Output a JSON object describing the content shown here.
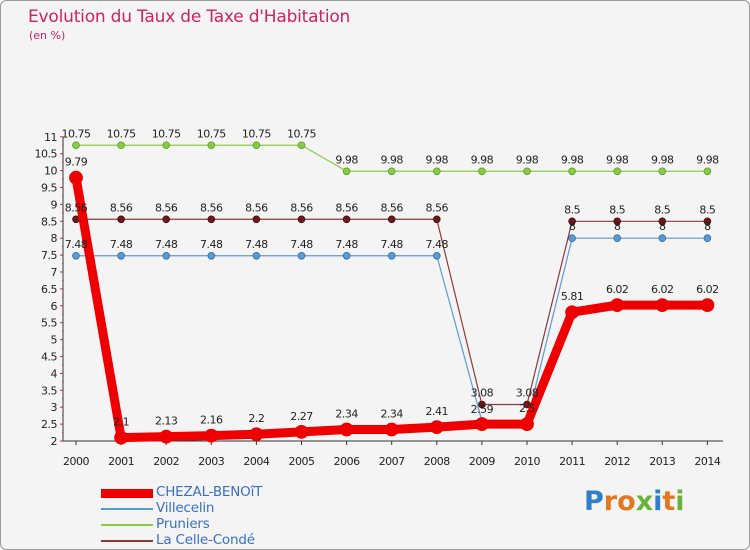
{
  "title": "Evolution du Taux de Taxe d'Habitation",
  "unit": "(en %)",
  "brand": "Proxiti",
  "brand_colors": [
    "#2e7fc9",
    "#e3781f",
    "#e3781f",
    "#6ab23a",
    "#2e7fc9",
    "#e3781f",
    "#6ab23a"
  ],
  "chart_data": {
    "type": "line",
    "title": "Evolution du Taux de Taxe d'Habitation",
    "ylabel": "(en %)",
    "xlabel": "",
    "x": [
      "2000",
      "2001",
      "2002",
      "2003",
      "2004",
      "2005",
      "2006",
      "2007",
      "2008",
      "2009",
      "2010",
      "2011",
      "2012",
      "2013",
      "2014"
    ],
    "ylim": [
      2,
      11
    ],
    "yticks": [
      "2",
      "2.5",
      "3",
      "3.5",
      "4",
      "4.5",
      "5",
      "5.5",
      "6",
      "6.5",
      "7",
      "7.5",
      "8",
      "8.5",
      "9",
      "9.5",
      "10",
      "10.5",
      "11"
    ],
    "grid": false,
    "legend_position": "bottom-left",
    "series": [
      {
        "name": "Pruniers",
        "color": "#88cc44",
        "values": [
          10.75,
          10.75,
          10.75,
          10.75,
          10.75,
          10.75,
          9.98,
          9.98,
          9.98,
          9.98,
          9.98,
          9.98,
          9.98,
          9.98,
          9.98
        ],
        "labels": [
          "10.75",
          "10.75",
          "10.75",
          "10.75",
          "10.75",
          "10.75",
          "9.98",
          "9.98",
          "9.98",
          "9.98",
          "9.98",
          "9.98",
          "9.98",
          "9.98",
          "9.98"
        ]
      },
      {
        "name": "Villecelin",
        "color": "#5b9bd5",
        "values": [
          7.48,
          7.48,
          7.48,
          7.48,
          7.48,
          7.48,
          7.48,
          7.48,
          7.48,
          2.59,
          2.59,
          8,
          8,
          8,
          8
        ],
        "labels": [
          "7.48",
          "7.48",
          "7.48",
          "7.48",
          "7.48",
          "7.48",
          "7.48",
          "7.48",
          "7.48",
          "2.59",
          "",
          "8",
          "8",
          "8",
          "8"
        ]
      },
      {
        "name": "La Celle-Condé",
        "color": "#8b3a3a",
        "values": [
          8.56,
          8.56,
          8.56,
          8.56,
          8.56,
          8.56,
          8.56,
          8.56,
          8.56,
          3.08,
          3.08,
          8.5,
          8.5,
          8.5,
          8.5
        ],
        "labels": [
          "8.56",
          "8.56",
          "8.56",
          "8.56",
          "8.56",
          "8.56",
          "8.56",
          "8.56",
          "8.56",
          "3.08",
          "3.08",
          "8.5",
          "8.5",
          "8.5",
          "8.5"
        ]
      },
      {
        "name": "CHEZAL-BENOîT",
        "color": "#ee0000",
        "values": [
          9.79,
          2.1,
          2.13,
          2.16,
          2.2,
          2.27,
          2.34,
          2.34,
          2.41,
          2.5,
          2.5,
          5.81,
          6.02,
          6.02,
          6.02
        ],
        "labels": [
          "9.79",
          "2.1",
          "2.13",
          "2.16",
          "2.2",
          "2.27",
          "2.34",
          "2.34",
          "2.41",
          "",
          "2.5",
          "5.81",
          "6.02",
          "6.02",
          "6.02"
        ]
      }
    ],
    "legend": [
      "CHEZAL-BENOîT",
      "Villecelin",
      "Pruniers",
      "La Celle-Condé"
    ]
  }
}
